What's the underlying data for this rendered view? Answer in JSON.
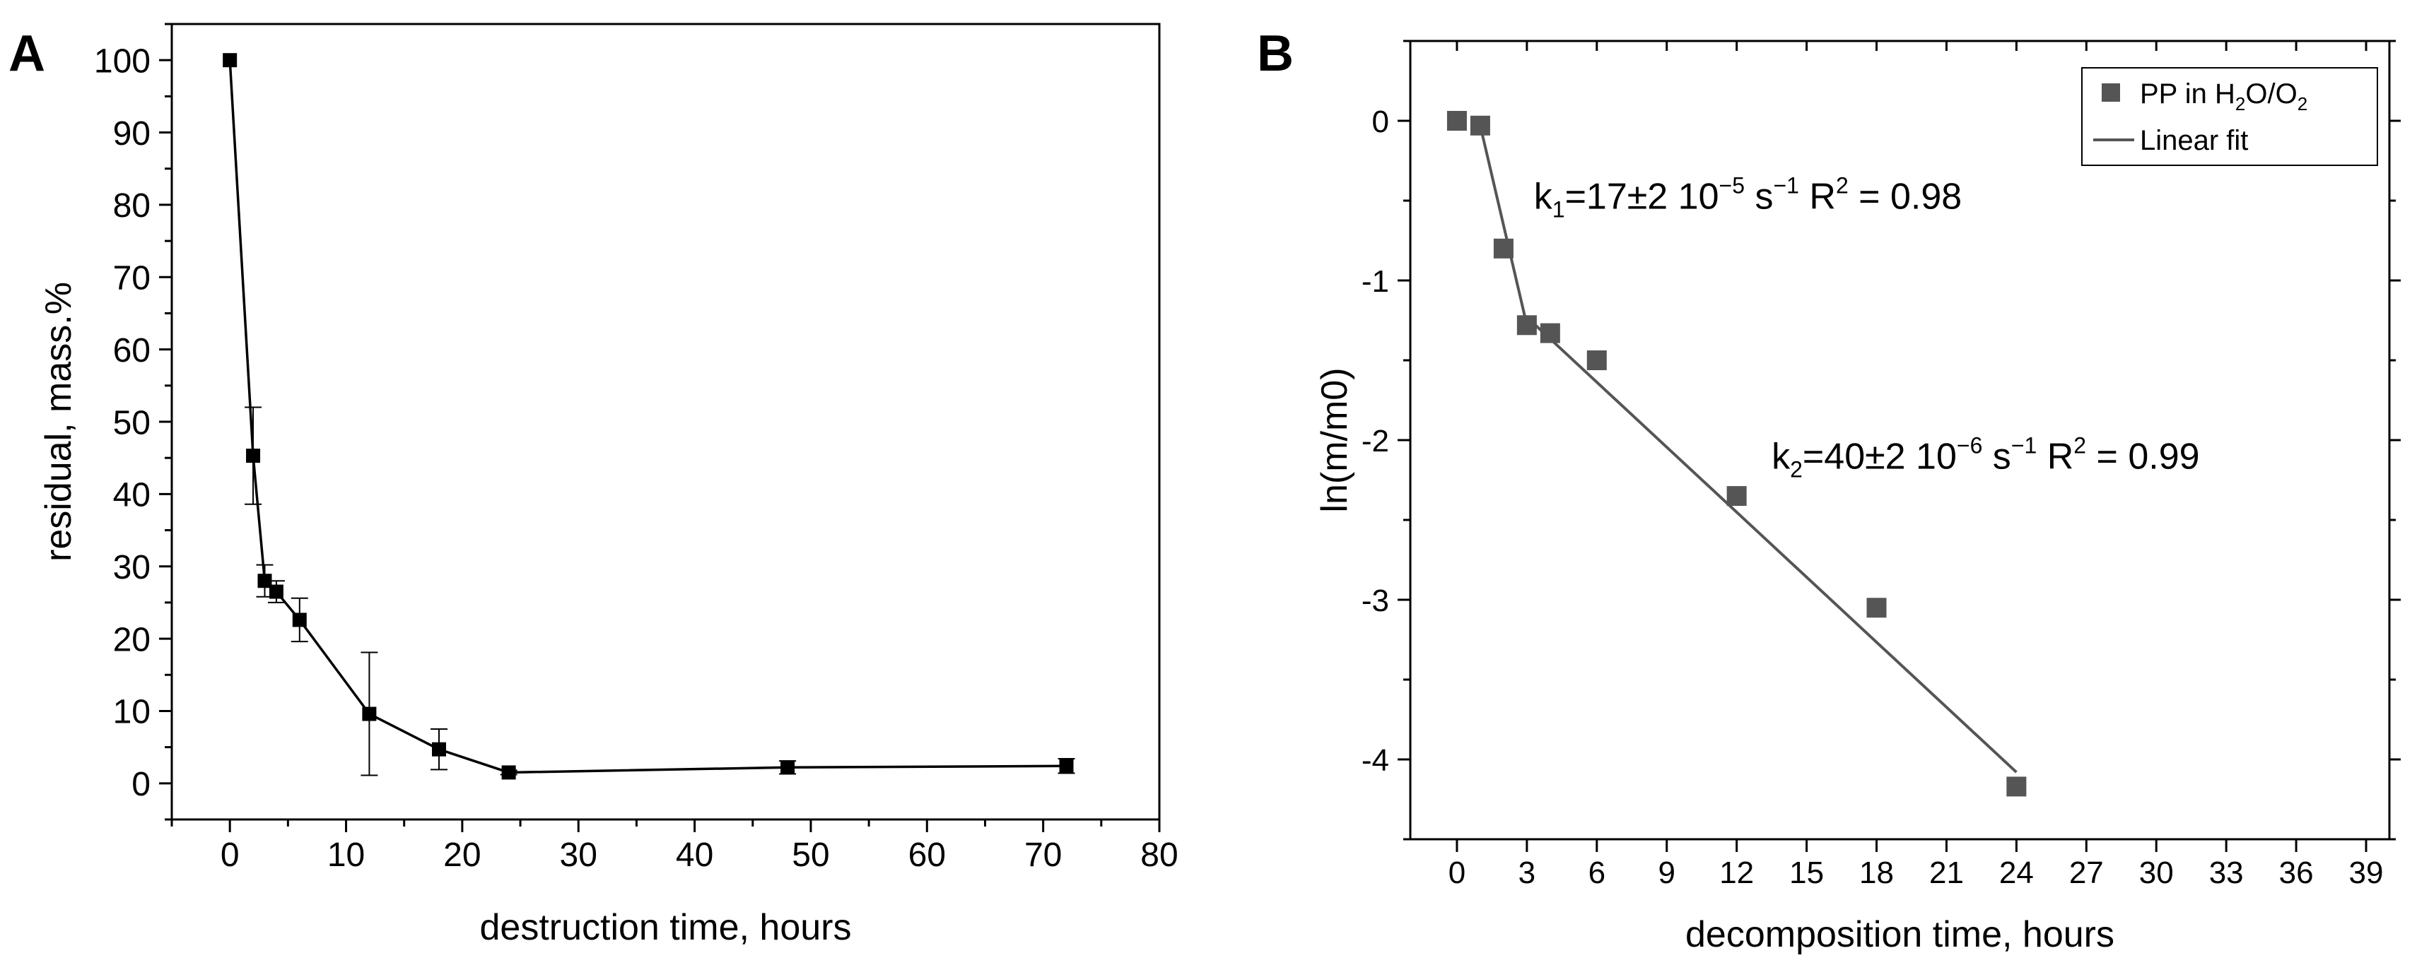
{
  "chart_data": [
    {
      "panel_label": "A",
      "type": "line",
      "xlabel": "destruction time, hours",
      "ylabel": "residual, mass.%",
      "xlim": [
        -5,
        80
      ],
      "ylim": [
        -5,
        105
      ],
      "xticks": [
        0,
        10,
        20,
        30,
        40,
        50,
        60,
        70,
        80
      ],
      "yticks": [
        0,
        10,
        20,
        30,
        40,
        50,
        60,
        70,
        80,
        90,
        100
      ],
      "grid": false,
      "series": [
        {
          "name": "residual",
          "marker": "square",
          "x": [
            0,
            2,
            3,
            4,
            6,
            12,
            18,
            24,
            48,
            72
          ],
          "y": [
            100,
            45.3,
            28,
            26.5,
            22.6,
            9.6,
            4.7,
            1.5,
            2.2,
            2.4
          ],
          "error": [
            0,
            6.7,
            2.2,
            1.5,
            3,
            8.5,
            2.8,
            0.3,
            0.9,
            1
          ]
        }
      ]
    },
    {
      "panel_label": "B",
      "type": "scatter",
      "xlabel": "decomposition time, hours",
      "ylabel": "ln(m/m0)",
      "xlim": [
        -2,
        40
      ],
      "ylim": [
        -4.5,
        0.5
      ],
      "xticks": [
        0,
        3,
        6,
        9,
        12,
        15,
        18,
        21,
        24,
        27,
        30,
        33,
        36,
        39
      ],
      "yticks": [
        0,
        -1,
        -2,
        -3,
        -4
      ],
      "grid": false,
      "legend_position": "top-right",
      "series": [
        {
          "name": "PP in H2O/O2",
          "legend": {
            "base": "PP in H",
            "s1": "2",
            "mid": "O/O",
            "s2": "2"
          },
          "marker": "square",
          "color": "#555555",
          "x": [
            0,
            1,
            2,
            3,
            4,
            6,
            12,
            18,
            24
          ],
          "y": [
            0,
            -0.03,
            -0.8,
            -1.28,
            -1.33,
            -1.5,
            -2.35,
            -3.05,
            -4.17
          ]
        }
      ],
      "fits": [
        {
          "name": "Linear fit",
          "x": [
            1,
            3
          ],
          "y": [
            -0.03,
            -1.28
          ]
        },
        {
          "name": "Linear fit",
          "x": [
            3,
            24
          ],
          "y": [
            -1.23,
            -4.08
          ]
        }
      ],
      "annotations": [
        {
          "id": "k1",
          "anchor": [
            3.3,
            -0.55
          ],
          "k": "k",
          "ksub": "1",
          "eq": "=17±2 10",
          "exp": "−5",
          "unit": " s",
          "uexp": "−1",
          "r": " R",
          "rexp": "2",
          "rval": " = 0.98"
        },
        {
          "id": "k2",
          "anchor": [
            13.5,
            -2.18
          ],
          "k": "k",
          "ksub": "2",
          "eq": "=40±2 10",
          "exp": "−6",
          "unit": " s",
          "uexp": "−1",
          "r": " R",
          "rexp": "2",
          "rval": " = 0.99"
        }
      ]
    }
  ]
}
